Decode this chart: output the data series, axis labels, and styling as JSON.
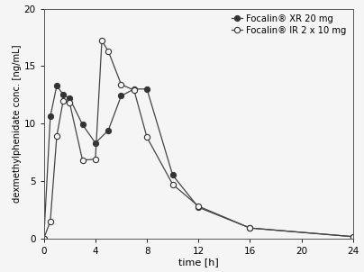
{
  "xr_x": [
    0,
    0.5,
    1,
    1.5,
    2,
    3,
    4,
    5,
    6,
    7,
    8,
    10,
    12,
    16,
    24
  ],
  "xr_y": [
    0.0,
    10.6,
    13.3,
    12.5,
    12.2,
    9.9,
    8.3,
    9.4,
    12.4,
    13.0,
    13.0,
    5.5,
    2.7,
    0.9,
    0.15
  ],
  "ir_x": [
    0,
    0.5,
    1,
    1.5,
    2,
    3,
    4,
    4.5,
    5,
    6,
    7,
    8,
    10,
    12,
    16,
    24
  ],
  "ir_y": [
    0.0,
    1.5,
    8.9,
    12.0,
    11.8,
    6.8,
    6.9,
    17.2,
    16.3,
    13.4,
    12.9,
    8.8,
    4.7,
    2.8,
    0.9,
    0.15
  ],
  "xlabel": "time [h]",
  "ylabel": "dexmethylphenidate conc. [ng/mL]",
  "xlim": [
    0,
    24
  ],
  "ylim": [
    0,
    20
  ],
  "xticks": [
    0,
    4,
    8,
    12,
    16,
    20,
    24
  ],
  "yticks": [
    0,
    5,
    10,
    15,
    20
  ],
  "legend_xr": "Focalin® XR 20 mg",
  "legend_ir": "Focalin® IR 2 x 10 mg",
  "line_color": "#444444",
  "bg_color": "#f5f5f5",
  "marker_size": 4.5,
  "linewidth": 0.9
}
